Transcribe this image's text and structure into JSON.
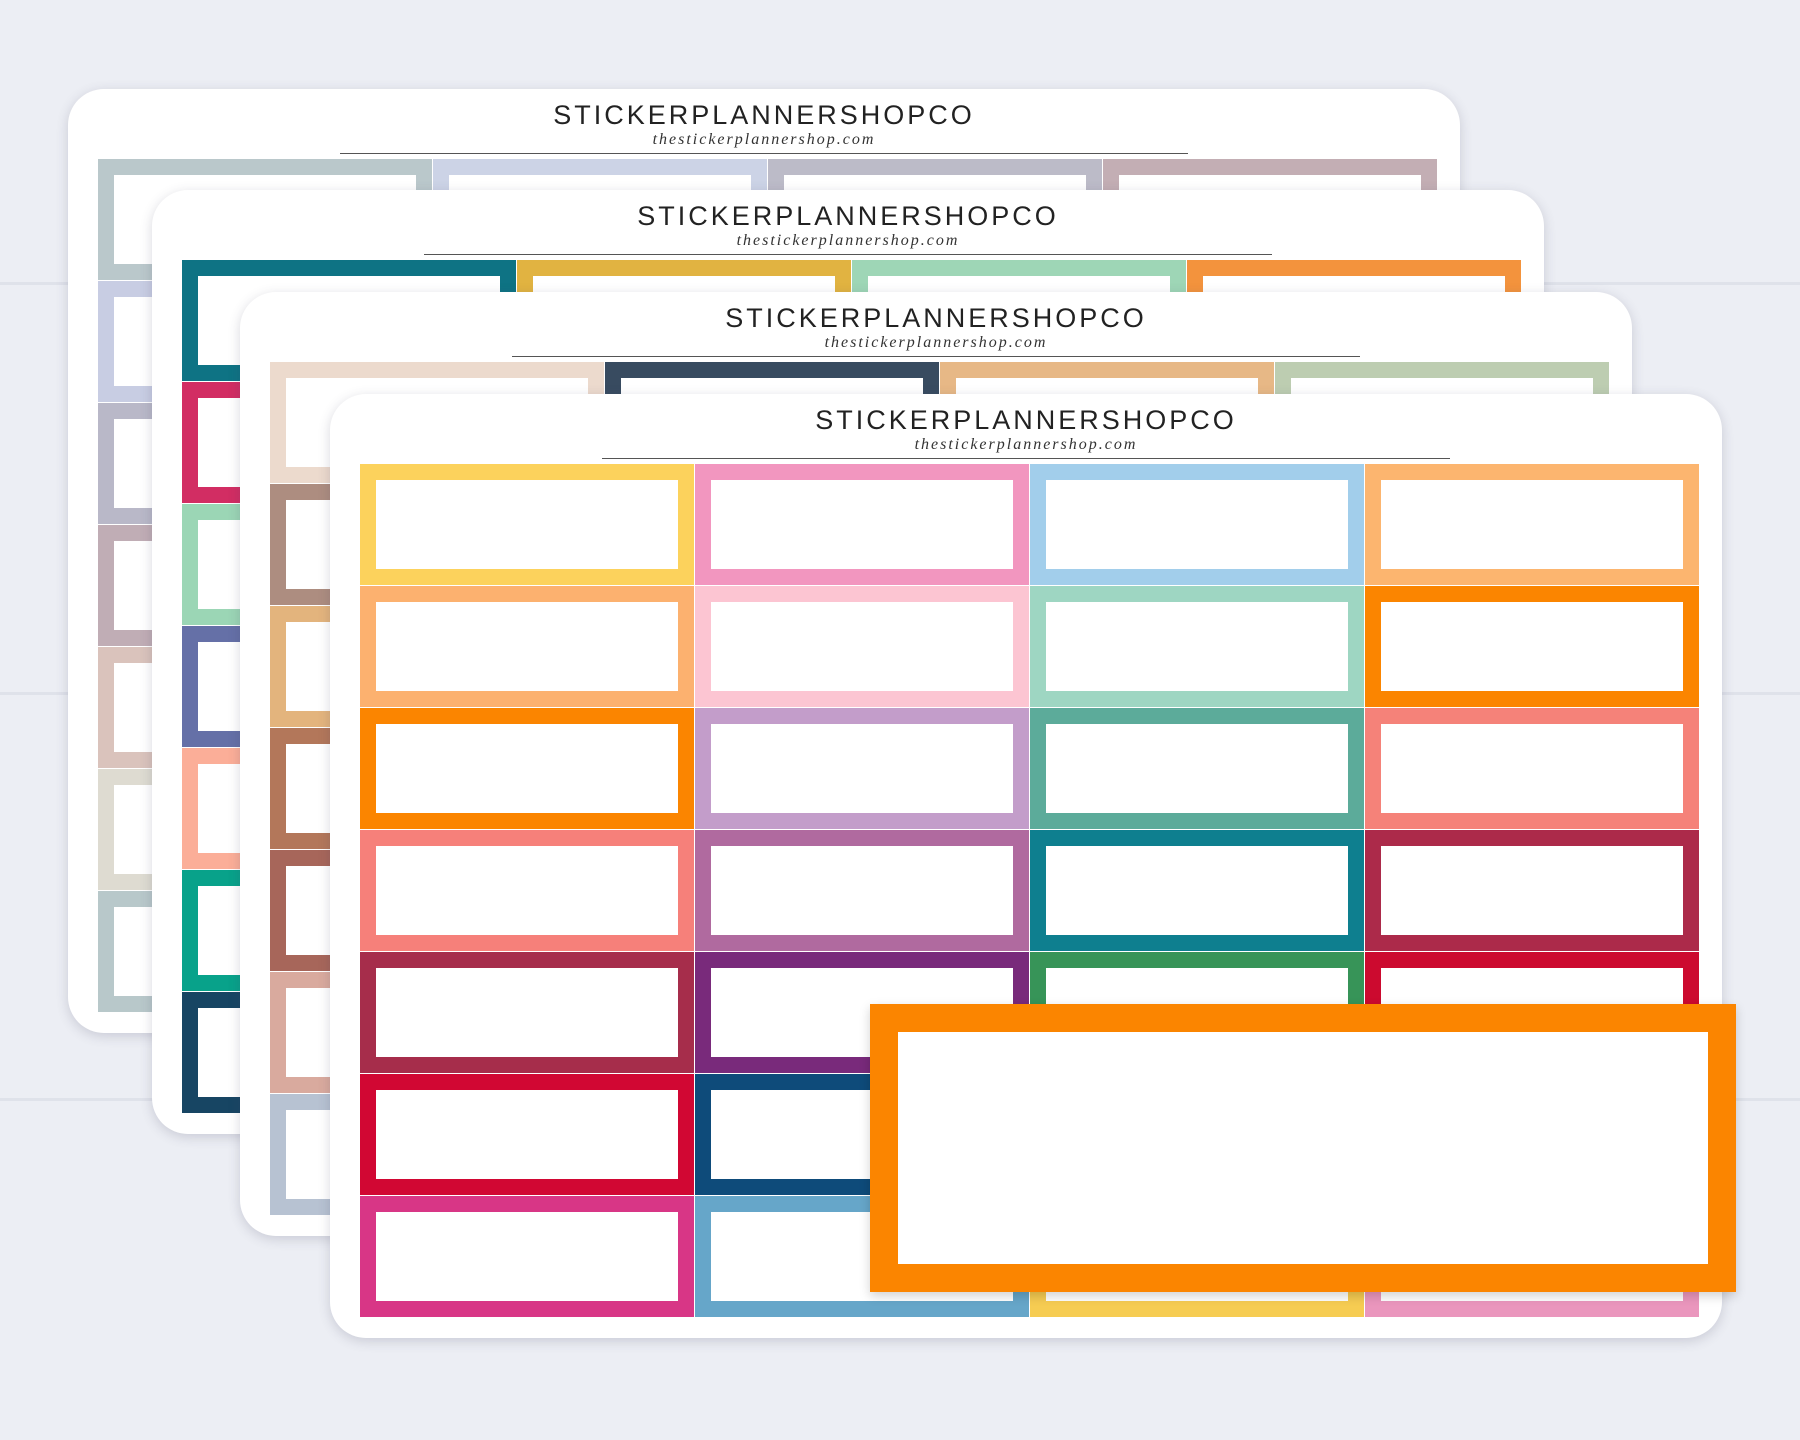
{
  "brand": "STICKERPLANNERSHOPCO",
  "website": "thestickerplannershop.com",
  "sheets": [
    {
      "name": "pastel-sheet",
      "columns": [
        [
          "#bac8cb",
          "#c8cde3",
          "#b9b8c8",
          "#c0adb5",
          "#dac3bc",
          "#dedbd1",
          "#b8c8ca"
        ],
        [
          "#ccd3e6",
          "#ccd3e6",
          "#ccd3e6",
          "#ccd3e6",
          "#ccd3e6",
          "#ccd3e6",
          "#ccd3e6"
        ],
        [
          "#bcbbc8",
          "#bcbbc8",
          "#bcbbc8",
          "#bcbbc8",
          "#bcbbc8",
          "#bcbbc8",
          "#bcbbc8"
        ],
        [
          "#c3aeb4",
          "#c3aeb4",
          "#c3aeb4",
          "#c3aeb4",
          "#c3aeb4",
          "#c3aeb4",
          "#c3aeb4"
        ]
      ]
    },
    {
      "name": "jewel-sheet",
      "columns": [
        [
          "#0e7384",
          "#d22d63",
          "#9bd6b5",
          "#6570a7",
          "#fbae98",
          "#08a28a",
          "#174563"
        ],
        [
          "#e1b341",
          "#e1b341",
          "#e1b341",
          "#e1b341",
          "#e1b341",
          "#e1b341",
          "#e1b341"
        ],
        [
          "#9ed6b6",
          "#9ed6b6",
          "#9ed6b6",
          "#9ed6b6",
          "#9ed6b6",
          "#9ed6b6",
          "#9ed6b6"
        ],
        [
          "#f3933d",
          "#f3933d",
          "#f3933d",
          "#f3933d",
          "#f3933d",
          "#f3933d",
          "#f3933d"
        ]
      ]
    },
    {
      "name": "earthy-sheet",
      "columns": [
        [
          "#ecdacd",
          "#ad8d80",
          "#e3b47d",
          "#b3775a",
          "#a7665a",
          "#d9aa9e",
          "#b7c2d2"
        ],
        [
          "#384b60",
          "#384b60",
          "#384b60",
          "#384b60",
          "#384b60",
          "#384b60",
          "#384b60"
        ],
        [
          "#e7b886",
          "#e7b886",
          "#e7b886",
          "#e7b886",
          "#e7b886",
          "#e7b886",
          "#e7b886"
        ],
        [
          "#bdcdb1",
          "#bdcdb1",
          "#bdcdb1",
          "#bdcdb1",
          "#bdcdb1",
          "#bdcdb1",
          "#bdcdb1"
        ]
      ]
    },
    {
      "name": "bright-sheet",
      "columns": [
        [
          "#fcd25c",
          "#fcb16f",
          "#fb8500",
          "#f6807a",
          "#a62d4b",
          "#d10733",
          "#d83686"
        ],
        [
          "#f296bf",
          "#fcc5d2",
          "#c39dca",
          "#b06a9f",
          "#792a7b",
          "#0e4b7a",
          "#66a6c9"
        ],
        [
          "#a2ceeb",
          "#9ed6c2",
          "#5cab9a",
          "#0e7f8f",
          "#379458",
          "#f6cc52",
          "#f6cc52"
        ],
        [
          "#fcb56f",
          "#fb8500",
          "#f58279",
          "#ac2a4a",
          "#cc0a2f",
          "#ea96bd",
          "#ea96bd"
        ]
      ]
    }
  ],
  "featured_color": "#fb8500"
}
